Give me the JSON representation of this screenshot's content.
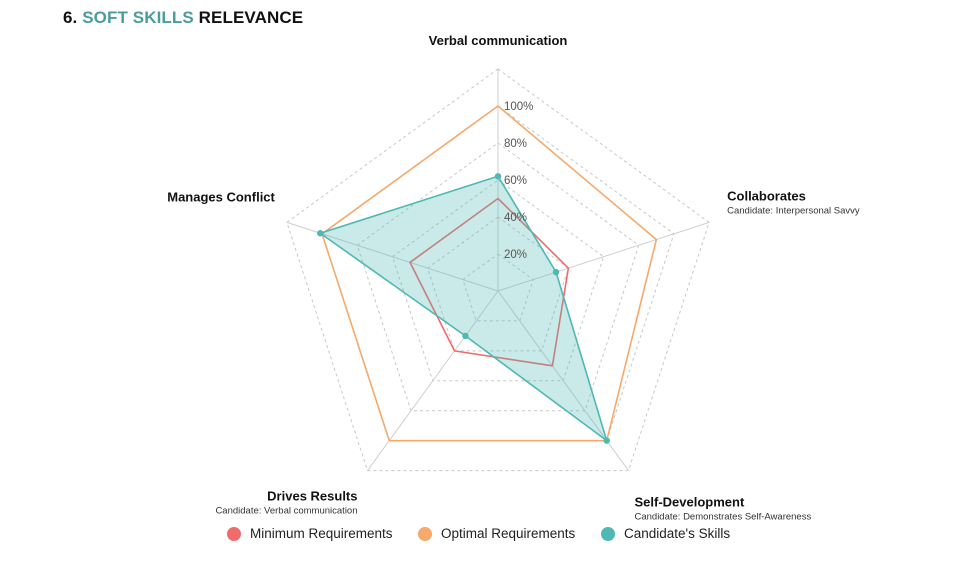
{
  "section": {
    "number": "6.",
    "accent": "SOFT SKILLS",
    "rest": "RELEVANCE"
  },
  "colors": {
    "accent": "#4a9d9b",
    "minimum": "#f26b6b",
    "optimal": "#f5a96a",
    "candidate": "#4db8b4"
  },
  "chart_data": {
    "type": "radar",
    "axes": [
      {
        "label": "Verbal communication",
        "sublabel": ""
      },
      {
        "label": "Collaborates",
        "sublabel": "Candidate: Interpersonal Savvy"
      },
      {
        "label": "Self-Development",
        "sublabel": "Candidate: Demonstrates Self-Awareness"
      },
      {
        "label": "Drives Results",
        "sublabel": "Candidate: Verbal communication"
      },
      {
        "label": "Manages Conflict",
        "sublabel": ""
      }
    ],
    "ticks": [
      "20%",
      "40%",
      "60%",
      "80%",
      "100%"
    ],
    "range": [
      0,
      120
    ],
    "grid": true,
    "legend_position": "bottom",
    "series": [
      {
        "name": "Minimum Requirements",
        "values": [
          50,
          40,
          50,
          40,
          50
        ],
        "filled": false,
        "points": false
      },
      {
        "name": "Optimal Requirements",
        "values": [
          100,
          90,
          100,
          100,
          100
        ],
        "filled": false,
        "points": false
      },
      {
        "name": "Candidate's Skills",
        "values": [
          62,
          33,
          100,
          30,
          101
        ],
        "filled": true,
        "points": true
      }
    ]
  }
}
